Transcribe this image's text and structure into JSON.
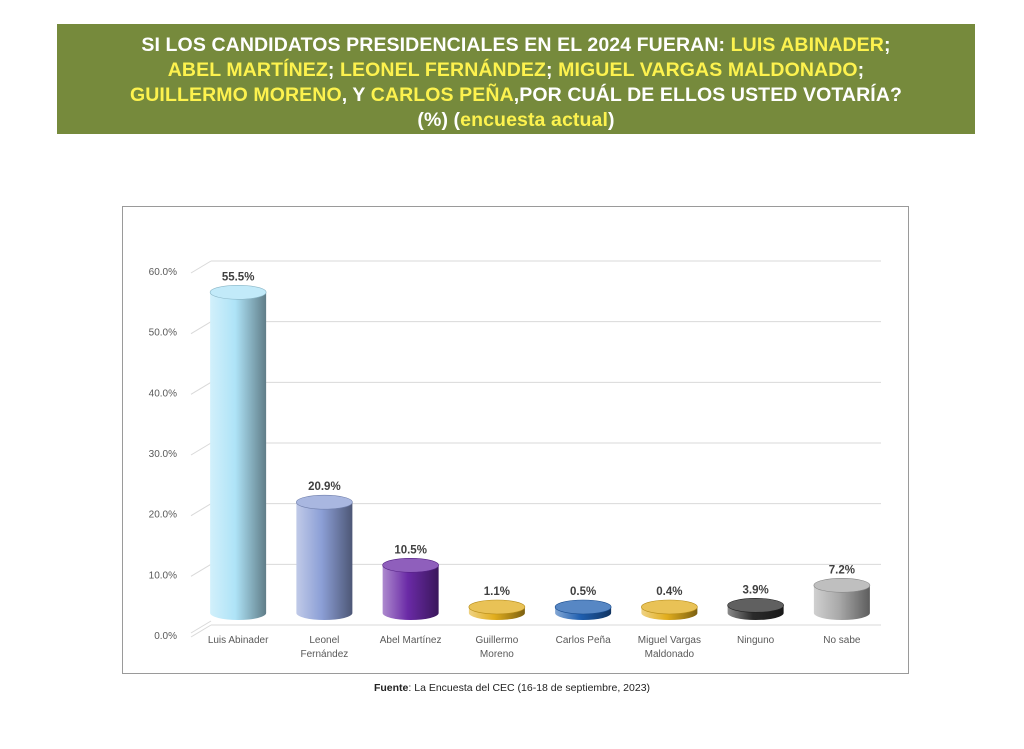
{
  "banner": {
    "line1_a": "SI LOS CANDIDATOS PRESIDENCIALES EN EL 2024 FUERAN: ",
    "line1_b": "LUIS ABINADER",
    "line1_c": ";",
    "line2_a": "ABEL MARTÍNEZ",
    "line2_b": "; ",
    "line2_c": "LEONEL FERNÁNDEZ",
    "line2_d": "; ",
    "line2_e": "MIGUEL VARGAS MALDONADO",
    "line2_f": ";",
    "line3_a": "GUILLERMO MORENO",
    "line3_b": ", Y ",
    "line3_c": "CARLOS PEÑA",
    "line3_d": ",POR CUÁL DE ELLOS USTED VOTARÍA?",
    "line4_a": "(%) (",
    "line4_b": "encuesta actual",
    "line4_c": ")"
  },
  "source": {
    "label": "Fuente",
    "text": ": La Encuesta del CEC (16-18 de septiembre, 2023)"
  },
  "chart_data": {
    "type": "bar",
    "title": "",
    "xlabel": "",
    "ylabel": "",
    "ylim": [
      0,
      60
    ],
    "ytick_values": [
      0,
      10,
      20,
      30,
      40,
      50,
      60
    ],
    "yticks": [
      "0.0%",
      "10.0%",
      "20.0%",
      "30.0%",
      "40.0%",
      "50.0%",
      "60.0%"
    ],
    "grid": true,
    "categories": [
      [
        "Luis Abinader"
      ],
      [
        "Leonel",
        "Fernández"
      ],
      [
        "Abel Martínez"
      ],
      [
        "Guillermo",
        "Moreno"
      ],
      [
        "Carlos Peña"
      ],
      [
        "Miguel Vargas",
        "Maldonado"
      ],
      [
        "Ninguno"
      ],
      [
        "No sabe"
      ]
    ],
    "values": [
      55.5,
      20.9,
      10.5,
      1.1,
      0.5,
      0.4,
      3.9,
      7.2
    ],
    "value_labels": [
      "55.5%",
      "20.9%",
      "10.5%",
      "1.1%",
      "0.5%",
      "0.4%",
      "3.9%",
      "7.2%"
    ],
    "colors": [
      "#aee3f7",
      "#8c9fd6",
      "#6a2aa6",
      "#e2ae1e",
      "#1f5fb0",
      "#e2ae1e",
      "#2b2b2b",
      "#a9a9a9"
    ]
  }
}
